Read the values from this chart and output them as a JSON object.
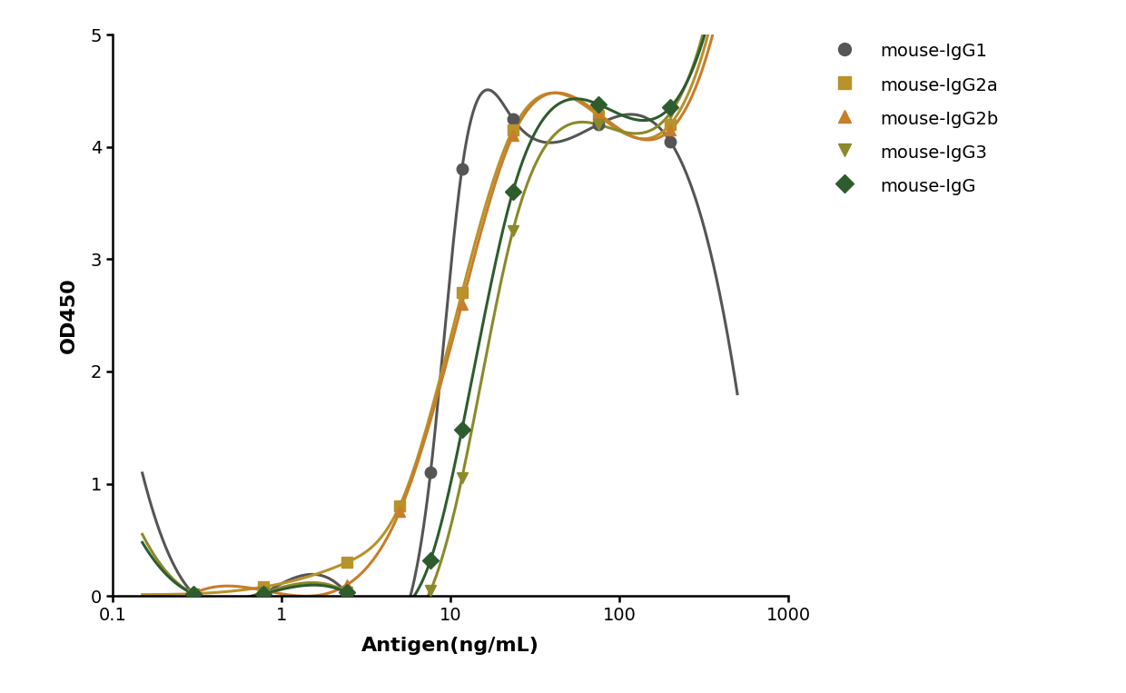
{
  "series": [
    {
      "label": "mouse-IgG1",
      "color": "#555555",
      "marker": "o",
      "x_data": [
        0.3,
        0.78,
        2.44,
        7.63,
        11.7,
        23.4,
        75,
        200
      ],
      "y_data": [
        0.02,
        0.02,
        0.02,
        1.1,
        3.8,
        4.25,
        4.2,
        4.05
      ],
      "p0": [
        0.02,
        4.35,
        8.5,
        3.5
      ]
    },
    {
      "label": "mouse-IgG2a",
      "color": "#b8922a",
      "marker": "s",
      "x_data": [
        0.3,
        0.78,
        2.44,
        5.0,
        11.7,
        23.4,
        75,
        200
      ],
      "y_data": [
        0.02,
        0.08,
        0.3,
        0.8,
        2.7,
        4.15,
        4.28,
        4.2
      ],
      "p0": [
        0.02,
        4.3,
        13.0,
        3.0
      ]
    },
    {
      "label": "mouse-IgG2b",
      "color": "#c87d2a",
      "marker": "^",
      "x_data": [
        0.3,
        0.78,
        2.44,
        5.0,
        11.7,
        23.4,
        75,
        200
      ],
      "y_data": [
        0.02,
        0.05,
        0.1,
        0.75,
        2.6,
        4.1,
        4.3,
        4.15
      ],
      "p0": [
        0.02,
        4.3,
        13.5,
        3.0
      ]
    },
    {
      "label": "mouse-IgG3",
      "color": "#8a8a2a",
      "marker": "v",
      "x_data": [
        0.3,
        0.78,
        2.44,
        7.63,
        11.7,
        23.4,
        75,
        200
      ],
      "y_data": [
        0.02,
        0.03,
        0.03,
        0.05,
        1.05,
        3.25,
        4.2,
        4.3
      ],
      "p0": [
        0.02,
        4.35,
        35.0,
        3.0
      ]
    },
    {
      "label": "mouse-IgG",
      "color": "#2e5c2e",
      "marker": "D",
      "x_data": [
        0.3,
        0.78,
        2.44,
        7.63,
        11.7,
        23.4,
        75,
        200
      ],
      "y_data": [
        0.02,
        0.02,
        0.03,
        0.32,
        1.48,
        3.6,
        4.38,
        4.35
      ],
      "p0": [
        0.02,
        4.4,
        23.0,
        3.0
      ]
    }
  ],
  "xlabel": "Antigen(ng/mL)",
  "ylabel": "OD450",
  "xlim": [
    0.1,
    1000
  ],
  "ylim": [
    0,
    5
  ],
  "yticks": [
    0,
    1,
    2,
    3,
    4,
    5
  ],
  "background_color": "#ffffff",
  "legend_fontsize": 14,
  "axis_fontsize": 16,
  "tick_fontsize": 14,
  "line_width": 2.2,
  "marker_size": 9
}
